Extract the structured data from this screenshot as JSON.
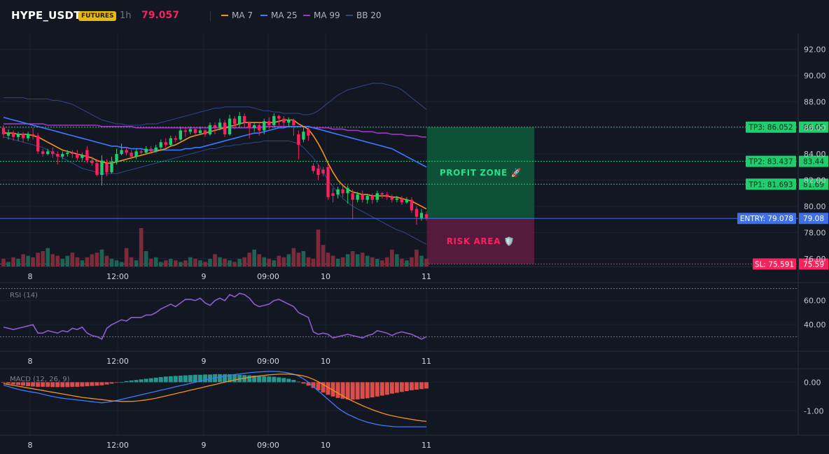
{
  "header": {
    "symbol": "HYPE_USDT",
    "market": "FUTURES",
    "timeframe": "1h",
    "price": "79.057",
    "legend": [
      {
        "label": "MA 7",
        "color": "#f7931a"
      },
      {
        "label": "MA 25",
        "color": "#3d7bff"
      },
      {
        "label": "MA 99",
        "color": "#9c39c0"
      },
      {
        "label": "BB 20",
        "color": "#2e4488"
      }
    ]
  },
  "chart_data": {
    "type": "candlestick",
    "x_ticks": [
      "8",
      "12:00",
      "9",
      "09:00",
      "10",
      "11"
    ],
    "price_axis": {
      "ticks": [
        "92.00",
        "90.00",
        "88.00",
        "86.00",
        "84.00",
        "82.00",
        "80.00",
        "78.00",
        "76.00"
      ],
      "ylim": [
        75.4,
        93.2
      ]
    },
    "candles": [
      [
        86.0,
        85.5,
        86.2,
        85.2
      ],
      [
        85.4,
        85.6,
        85.9,
        85.1
      ],
      [
        85.6,
        85.3,
        85.8,
        85.0
      ],
      [
        85.3,
        85.5,
        85.7,
        85.0
      ],
      [
        85.5,
        85.2,
        85.7,
        84.9
      ],
      [
        85.2,
        85.5,
        85.7,
        85.0
      ],
      [
        85.5,
        85.4,
        86.0,
        85.1
      ],
      [
        85.4,
        84.2,
        85.6,
        84.0
      ],
      [
        84.2,
        84.0,
        84.4,
        83.8
      ],
      [
        84.0,
        84.2,
        84.4,
        83.9
      ],
      [
        84.2,
        84.0,
        84.5,
        83.7
      ],
      [
        84.0,
        83.8,
        84.2,
        83.2
      ],
      [
        83.8,
        84.0,
        84.2,
        83.6
      ],
      [
        84.0,
        84.1,
        84.3,
        83.8
      ],
      [
        84.1,
        84.0,
        84.3,
        83.7
      ],
      [
        84.0,
        83.7,
        84.3,
        83.5
      ],
      [
        83.7,
        83.9,
        84.1,
        83.5
      ],
      [
        84.3,
        83.5,
        84.6,
        83.3
      ],
      [
        83.5,
        83.3,
        83.8,
        83.1
      ],
      [
        83.3,
        82.4,
        83.6,
        82.3
      ],
      [
        82.4,
        83.5,
        83.9,
        81.6
      ],
      [
        83.3,
        82.6,
        83.6,
        82.3
      ],
      [
        82.6,
        83.4,
        83.8,
        82.5
      ],
      [
        83.4,
        84.0,
        84.4,
        83.2
      ],
      [
        84.0,
        84.3,
        84.8,
        83.9
      ],
      [
        84.3,
        84.1,
        84.5,
        83.9
      ],
      [
        84.1,
        83.8,
        84.3,
        83.6
      ],
      [
        83.8,
        84.2,
        84.4,
        83.6
      ],
      [
        84.2,
        84.1,
        84.4,
        83.9
      ],
      [
        84.1,
        84.4,
        84.6,
        84.0
      ],
      [
        84.4,
        84.2,
        84.6,
        84.0
      ],
      [
        84.2,
        84.5,
        84.7,
        84.1
      ],
      [
        84.5,
        84.9,
        85.1,
        84.3
      ],
      [
        84.9,
        84.7,
        85.2,
        84.5
      ],
      [
        84.7,
        85.2,
        85.4,
        84.6
      ],
      [
        85.2,
        85.1,
        85.4,
        84.9
      ],
      [
        85.1,
        85.8,
        86.1,
        85.0
      ],
      [
        85.8,
        85.7,
        86.0,
        85.3
      ],
      [
        85.7,
        85.9,
        86.1,
        85.5
      ],
      [
        85.9,
        85.6,
        86.0,
        85.4
      ],
      [
        85.6,
        85.8,
        86.1,
        85.5
      ],
      [
        85.8,
        85.5,
        85.9,
        85.3
      ],
      [
        85.5,
        86.2,
        86.4,
        85.4
      ],
      [
        86.2,
        86.0,
        86.4,
        85.5
      ],
      [
        86.0,
        86.4,
        86.7,
        85.8
      ],
      [
        86.4,
        85.5,
        86.6,
        85.3
      ],
      [
        85.5,
        86.7,
        87.0,
        85.4
      ],
      [
        86.7,
        86.3,
        86.9,
        85.9
      ],
      [
        86.3,
        86.9,
        87.2,
        86.0
      ],
      [
        86.9,
        86.4,
        87.1,
        86.0
      ],
      [
        86.4,
        86.0,
        86.5,
        85.2
      ],
      [
        86.0,
        86.2,
        86.4,
        85.7
      ],
      [
        86.2,
        85.8,
        86.4,
        85.4
      ],
      [
        85.8,
        86.5,
        86.7,
        85.5
      ],
      [
        86.5,
        86.2,
        86.8,
        85.9
      ],
      [
        86.2,
        86.9,
        87.1,
        86.0
      ],
      [
        86.9,
        86.7,
        87.0,
        86.2
      ],
      [
        86.7,
        86.4,
        86.9,
        86.0
      ],
      [
        86.4,
        86.6,
        86.8,
        86.1
      ],
      [
        86.6,
        86.2,
        86.7,
        85.4
      ],
      [
        85.5,
        84.7,
        85.8,
        83.6
      ],
      [
        85.1,
        85.7,
        86.0,
        84.9
      ],
      [
        85.9,
        85.4,
        86.0,
        85.0
      ],
      [
        83.1,
        82.7,
        83.3,
        82.5
      ],
      [
        82.9,
        82.4,
        83.2,
        82.0
      ],
      [
        82.8,
        82.5,
        83.0,
        82.3
      ],
      [
        83.0,
        80.7,
        83.2,
        80.5
      ],
      [
        81.0,
        80.8,
        81.4,
        80.3
      ],
      [
        80.9,
        81.3,
        81.5,
        80.6
      ],
      [
        81.3,
        81.0,
        81.6,
        80.7
      ],
      [
        81.0,
        81.4,
        81.6,
        80.2
      ],
      [
        81.0,
        80.5,
        81.3,
        79.0
      ],
      [
        80.5,
        80.9,
        81.1,
        80.3
      ],
      [
        80.9,
        80.5,
        81.2,
        80.3
      ],
      [
        80.5,
        80.8,
        80.9,
        80.2
      ],
      [
        80.8,
        80.5,
        81.0,
        80.2
      ],
      [
        80.5,
        81.0,
        81.2,
        80.3
      ],
      [
        81.0,
        80.9,
        81.1,
        80.6
      ],
      [
        80.9,
        80.7,
        81.1,
        80.5
      ],
      [
        80.7,
        80.5,
        80.9,
        80.3
      ],
      [
        80.5,
        80.6,
        80.8,
        80.3
      ],
      [
        80.6,
        80.3,
        80.8,
        80.1
      ],
      [
        80.3,
        80.5,
        80.7,
        80.2
      ],
      [
        80.5,
        79.7,
        80.7,
        79.5
      ],
      [
        79.8,
        79.2,
        80.0,
        78.6
      ],
      [
        79.1,
        79.5,
        79.8,
        78.9
      ],
      [
        79.4,
        79.1,
        79.6,
        78.9
      ]
    ],
    "volume": [
      5,
      3,
      6,
      5,
      8,
      7,
      6,
      9,
      10,
      12,
      8,
      7,
      5,
      7,
      9,
      6,
      4,
      6,
      8,
      9,
      11,
      7,
      5,
      4,
      3,
      12,
      6,
      4,
      25,
      10,
      5,
      6,
      3,
      4,
      5,
      4,
      3,
      4,
      6,
      5,
      4,
      3,
      5,
      8,
      6,
      5,
      4,
      3,
      5,
      6,
      9,
      11,
      8,
      6,
      5,
      4,
      7,
      6,
      8,
      12,
      9,
      10,
      6,
      5,
      24,
      14,
      9,
      7,
      5,
      6,
      8,
      10,
      8,
      9,
      7,
      6,
      5,
      4,
      6,
      11,
      8,
      5,
      4,
      6,
      11,
      7,
      5
    ],
    "ma7": [
      85.6,
      85.6,
      85.6,
      85.5,
      85.5,
      85.5,
      85.4,
      85.3,
      85.1,
      84.9,
      84.7,
      84.5,
      84.3,
      84.2,
      84.1,
      84.0,
      83.9,
      83.8,
      83.7,
      83.5,
      83.4,
      83.3,
      83.3,
      83.4,
      83.5,
      83.6,
      83.7,
      83.8,
      83.9,
      84.0,
      84.1,
      84.2,
      84.3,
      84.4,
      84.6,
      84.7,
      84.9,
      85.1,
      85.3,
      85.4,
      85.5,
      85.6,
      85.7,
      85.8,
      85.9,
      86.0,
      86.1,
      86.2,
      86.3,
      86.4,
      86.4,
      86.4,
      86.4,
      86.4,
      86.4,
      86.4,
      86.5,
      86.6,
      86.6,
      86.6,
      86.3,
      86.1,
      85.9,
      85.4,
      84.8,
      84.1,
      83.3,
      82.6,
      82.0,
      81.6,
      81.3,
      81.1,
      81.0,
      80.9,
      80.9,
      80.8,
      80.8,
      80.8,
      80.8,
      80.7,
      80.7,
      80.6,
      80.5,
      80.4,
      80.2,
      80.0,
      79.8
    ],
    "ma25": [
      86.8,
      86.7,
      86.6,
      86.5,
      86.4,
      86.3,
      86.2,
      86.1,
      86.0,
      85.9,
      85.8,
      85.7,
      85.6,
      85.5,
      85.4,
      85.3,
      85.2,
      85.1,
      85.0,
      84.9,
      84.8,
      84.7,
      84.6,
      84.6,
      84.5,
      84.5,
      84.4,
      84.4,
      84.4,
      84.3,
      84.3,
      84.3,
      84.3,
      84.3,
      84.3,
      84.3,
      84.3,
      84.4,
      84.4,
      84.5,
      84.5,
      84.6,
      84.7,
      84.8,
      84.9,
      85.0,
      85.1,
      85.2,
      85.3,
      85.4,
      85.5,
      85.6,
      85.6,
      85.7,
      85.8,
      85.9,
      86.0,
      86.0,
      86.1,
      86.1,
      86.1,
      86.1,
      86.1,
      86.0,
      85.9,
      85.8,
      85.7,
      85.6,
      85.5,
      85.4,
      85.3,
      85.2,
      85.1,
      85.0,
      84.9,
      84.8,
      84.7,
      84.6,
      84.5,
      84.4,
      84.2,
      84.0,
      83.8,
      83.6,
      83.4,
      83.2,
      83.0
    ],
    "ma99": [
      86.3,
      86.3,
      86.3,
      86.3,
      86.3,
      86.3,
      86.3,
      86.3,
      86.3,
      86.2,
      86.2,
      86.2,
      86.2,
      86.2,
      86.2,
      86.2,
      86.2,
      86.2,
      86.2,
      86.2,
      86.1,
      86.1,
      86.1,
      86.1,
      86.1,
      86.1,
      86.1,
      86.0,
      86.0,
      86.0,
      86.0,
      86.0,
      86.0,
      86.0,
      86.0,
      86.0,
      86.0,
      86.0,
      86.0,
      86.0,
      86.0,
      86.0,
      86.0,
      86.0,
      86.0,
      86.0,
      86.0,
      86.0,
      86.0,
      86.0,
      86.0,
      86.0,
      86.0,
      86.1,
      86.1,
      86.1,
      86.1,
      86.1,
      86.1,
      86.1,
      86.1,
      86.1,
      86.1,
      86.0,
      86.0,
      86.0,
      86.0,
      85.9,
      85.9,
      85.9,
      85.8,
      85.8,
      85.8,
      85.7,
      85.7,
      85.7,
      85.6,
      85.6,
      85.6,
      85.5,
      85.5,
      85.5,
      85.4,
      85.4,
      85.4,
      85.3,
      85.3
    ],
    "bb_upper": [
      88.3,
      88.3,
      88.3,
      88.3,
      88.3,
      88.2,
      88.2,
      88.2,
      88.2,
      88.2,
      88.1,
      88.1,
      88.0,
      87.9,
      87.8,
      87.6,
      87.4,
      87.2,
      87.0,
      86.8,
      86.6,
      86.5,
      86.4,
      86.3,
      86.3,
      86.2,
      86.2,
      86.2,
      86.2,
      86.3,
      86.3,
      86.3,
      86.4,
      86.5,
      86.6,
      86.7,
      86.8,
      86.9,
      87.0,
      87.1,
      87.2,
      87.3,
      87.4,
      87.5,
      87.5,
      87.6,
      87.6,
      87.6,
      87.6,
      87.6,
      87.6,
      87.5,
      87.4,
      87.3,
      87.3,
      87.2,
      87.2,
      87.1,
      87.1,
      87.1,
      87.1,
      87.0,
      87.0,
      87.1,
      87.3,
      87.6,
      87.9,
      88.2,
      88.5,
      88.7,
      88.9,
      89.0,
      89.1,
      89.2,
      89.3,
      89.4,
      89.4,
      89.4,
      89.3,
      89.2,
      89.1,
      88.9,
      88.6,
      88.3,
      88.0,
      87.7,
      87.4
    ],
    "bb_lower": [
      85.3,
      85.2,
      85.1,
      85.0,
      84.9,
      84.8,
      84.7,
      84.6,
      84.5,
      84.3,
      84.1,
      83.9,
      83.7,
      83.5,
      83.3,
      83.1,
      82.9,
      82.8,
      82.7,
      82.6,
      82.5,
      82.5,
      82.5,
      82.5,
      82.6,
      82.7,
      82.8,
      82.9,
      83.0,
      83.1,
      83.2,
      83.3,
      83.4,
      83.5,
      83.6,
      83.7,
      83.8,
      83.9,
      84.0,
      84.1,
      84.2,
      84.3,
      84.4,
      84.4,
      84.5,
      84.6,
      84.6,
      84.7,
      84.7,
      84.8,
      84.8,
      84.9,
      84.9,
      85.0,
      85.0,
      85.0,
      85.0,
      85.0,
      85.0,
      84.9,
      84.8,
      84.5,
      84.1,
      83.7,
      83.2,
      82.6,
      82.0,
      81.5,
      81.0,
      80.6,
      80.3,
      80.0,
      79.8,
      79.6,
      79.4,
      79.2,
      79.0,
      78.8,
      78.6,
      78.4,
      78.2,
      78.1,
      77.9,
      77.7,
      77.5,
      77.3,
      77.1
    ],
    "levels": [
      {
        "name": "tp3",
        "label": "TP3: 86.052",
        "axis_label": "86.05",
        "value": 86.052,
        "color": "#1fcf6e"
      },
      {
        "name": "tp2",
        "label": "TP2: 83.437",
        "axis_label": "83.44",
        "value": 83.437,
        "color": "#1fcf6e"
      },
      {
        "name": "tp1",
        "label": "TP1: 81.693",
        "axis_label": "81.69",
        "value": 81.693,
        "color": "#1fcf6e"
      },
      {
        "name": "entry",
        "label": "ENTRY: 79.078",
        "axis_label": "79.08",
        "value": 79.078,
        "color": "#3d6fe6"
      },
      {
        "name": "sl",
        "label": "SL: 75.591",
        "axis_label": "75.59",
        "value": 75.591,
        "color": "#f7225e"
      }
    ],
    "zones": {
      "profit": "PROFIT ZONE 🚀",
      "risk": "RISK AREA 🛡️"
    },
    "rsi": {
      "title": "RSI (14)",
      "ticks": [
        "60.00",
        "40.00"
      ],
      "ylim": [
        18,
        72
      ],
      "levels": [
        70,
        30
      ],
      "values": [
        38,
        37,
        36,
        37,
        38,
        39,
        40,
        33,
        33,
        35,
        34,
        33,
        35,
        34,
        37,
        36,
        38,
        33,
        31,
        30,
        28,
        37,
        40,
        42,
        44,
        43,
        46,
        46,
        46,
        48,
        48,
        50,
        53,
        55,
        57,
        55,
        58,
        61,
        61,
        60,
        62,
        58,
        56,
        60,
        62,
        60,
        65,
        63,
        66,
        65,
        62,
        57,
        55,
        56,
        57,
        60,
        61,
        59,
        57,
        55,
        50,
        48,
        46,
        34,
        32,
        33,
        32,
        29,
        30,
        31,
        32,
        31,
        30,
        29,
        31,
        32,
        35,
        34,
        33,
        31,
        33,
        34,
        33,
        32,
        30,
        28,
        30
      ]
    },
    "macd": {
      "title": "MACD (12, 26, 9)",
      "ticks": [
        "0.00",
        "-1.00"
      ],
      "ylim": [
        -1.85,
        0.45
      ],
      "hist": [
        -0.02,
        -0.05,
        -0.08,
        -0.1,
        -0.12,
        -0.14,
        -0.15,
        -0.16,
        -0.16,
        -0.16,
        -0.17,
        -0.17,
        -0.17,
        -0.17,
        -0.16,
        -0.16,
        -0.15,
        -0.14,
        -0.13,
        -0.12,
        -0.11,
        -0.08,
        -0.05,
        -0.02,
        0.01,
        0.04,
        0.06,
        0.08,
        0.1,
        0.12,
        0.14,
        0.16,
        0.18,
        0.2,
        0.21,
        0.22,
        0.23,
        0.24,
        0.25,
        0.26,
        0.26,
        0.27,
        0.27,
        0.28,
        0.28,
        0.28,
        0.28,
        0.27,
        0.26,
        0.25,
        0.24,
        0.23,
        0.22,
        0.21,
        0.2,
        0.19,
        0.17,
        0.15,
        0.12,
        0.08,
        0.02,
        -0.05,
        -0.12,
        -0.2,
        -0.28,
        -0.36,
        -0.44,
        -0.5,
        -0.55,
        -0.58,
        -0.6,
        -0.61,
        -0.6,
        -0.58,
        -0.56,
        -0.53,
        -0.5,
        -0.47,
        -0.44,
        -0.4,
        -0.37,
        -0.34,
        -0.31,
        -0.28,
        -0.26,
        -0.24,
        -0.22
      ],
      "macd_line": [
        -0.1,
        -0.15,
        -0.2,
        -0.25,
        -0.29,
        -0.32,
        -0.35,
        -0.38,
        -0.42,
        -0.46,
        -0.5,
        -0.53,
        -0.56,
        -0.58,
        -0.6,
        -0.62,
        -0.64,
        -0.66,
        -0.68,
        -0.7,
        -0.72,
        -0.7,
        -0.67,
        -0.64,
        -0.6,
        -0.56,
        -0.52,
        -0.48,
        -0.44,
        -0.4,
        -0.36,
        -0.32,
        -0.28,
        -0.24,
        -0.2,
        -0.16,
        -0.12,
        -0.08,
        -0.04,
        0.0,
        0.04,
        0.08,
        0.12,
        0.15,
        0.18,
        0.21,
        0.24,
        0.27,
        0.29,
        0.31,
        0.33,
        0.35,
        0.36,
        0.37,
        0.38,
        0.38,
        0.37,
        0.35,
        0.32,
        0.28,
        0.22,
        0.12,
        0.0,
        -0.15,
        -0.3,
        -0.45,
        -0.6,
        -0.75,
        -0.9,
        -1.02,
        -1.12,
        -1.2,
        -1.28,
        -1.34,
        -1.4,
        -1.44,
        -1.48,
        -1.51,
        -1.53,
        -1.55,
        -1.56,
        -1.56,
        -1.56,
        -1.56,
        -1.56,
        -1.56,
        -1.56
      ],
      "signal_line": [
        -0.05,
        -0.08,
        -0.11,
        -0.14,
        -0.17,
        -0.2,
        -0.23,
        -0.26,
        -0.29,
        -0.32,
        -0.35,
        -0.38,
        -0.41,
        -0.44,
        -0.47,
        -0.5,
        -0.53,
        -0.55,
        -0.57,
        -0.59,
        -0.61,
        -0.63,
        -0.65,
        -0.66,
        -0.67,
        -0.67,
        -0.67,
        -0.66,
        -0.64,
        -0.62,
        -0.59,
        -0.56,
        -0.52,
        -0.48,
        -0.44,
        -0.4,
        -0.36,
        -0.32,
        -0.28,
        -0.24,
        -0.2,
        -0.16,
        -0.12,
        -0.08,
        -0.04,
        0.0,
        0.04,
        0.08,
        0.11,
        0.14,
        0.17,
        0.2,
        0.22,
        0.24,
        0.26,
        0.27,
        0.28,
        0.28,
        0.28,
        0.27,
        0.25,
        0.22,
        0.17,
        0.1,
        0.02,
        -0.08,
        -0.18,
        -0.28,
        -0.38,
        -0.48,
        -0.58,
        -0.66,
        -0.74,
        -0.82,
        -0.89,
        -0.96,
        -1.02,
        -1.08,
        -1.13,
        -1.17,
        -1.21,
        -1.24,
        -1.27,
        -1.3,
        -1.33,
        -1.35,
        -1.37
      ]
    }
  }
}
